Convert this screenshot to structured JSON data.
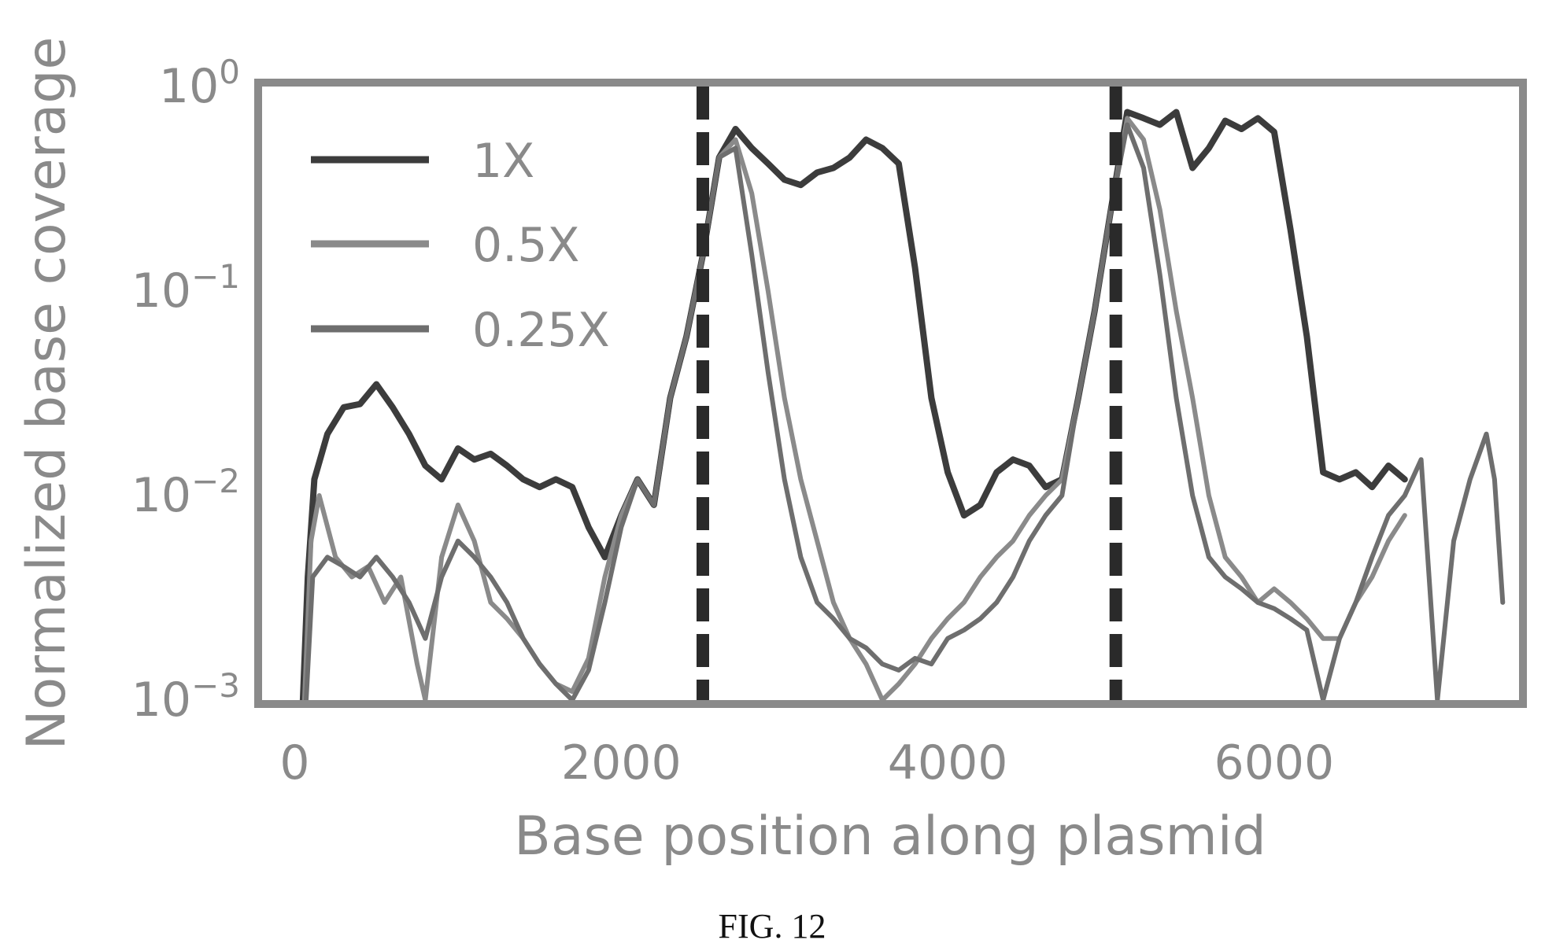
{
  "chart_data": {
    "type": "line",
    "xlabel": "Base position along plasmid",
    "ylabel": "Normalized base coverage",
    "xlim": [
      -200,
      7500
    ],
    "ylim": [
      0.001,
      1
    ],
    "y_scale": "log",
    "x_ticks": [
      0,
      2000,
      4000,
      6000
    ],
    "x_tick_labels": [
      "0",
      "2000",
      "4000",
      "6000"
    ],
    "y_ticks": [
      0.001,
      0.01,
      0.1,
      1
    ],
    "y_tick_labels": [
      {
        "base": "10",
        "exp": "−3"
      },
      {
        "base": "10",
        "exp": "−2"
      },
      {
        "base": "10",
        "exp": "−1"
      },
      {
        "base": "10",
        "exp": "0"
      }
    ],
    "vlines": [
      2500,
      5030
    ],
    "legend": {
      "position": "top-left"
    },
    "grid": false,
    "series": [
      {
        "name": "1X",
        "color": "#3c3c3c",
        "points": [
          [
            50,
            0.001
          ],
          [
            80,
            0.004
          ],
          [
            120,
            0.012
          ],
          [
            200,
            0.02
          ],
          [
            300,
            0.027
          ],
          [
            400,
            0.028
          ],
          [
            500,
            0.035
          ],
          [
            600,
            0.027
          ],
          [
            700,
            0.02
          ],
          [
            800,
            0.014
          ],
          [
            900,
            0.012
          ],
          [
            1000,
            0.017
          ],
          [
            1100,
            0.015
          ],
          [
            1200,
            0.016
          ],
          [
            1300,
            0.014
          ],
          [
            1400,
            0.012
          ],
          [
            1500,
            0.011
          ],
          [
            1600,
            0.012
          ],
          [
            1700,
            0.011
          ],
          [
            1800,
            0.007
          ],
          [
            1900,
            0.005
          ],
          [
            2000,
            0.008
          ],
          [
            2100,
            0.012
          ],
          [
            2200,
            0.009
          ],
          [
            2300,
            0.03
          ],
          [
            2400,
            0.06
          ],
          [
            2500,
            0.15
          ],
          [
            2600,
            0.45
          ],
          [
            2700,
            0.62
          ],
          [
            2800,
            0.5
          ],
          [
            2900,
            0.42
          ],
          [
            3000,
            0.35
          ],
          [
            3100,
            0.33
          ],
          [
            3200,
            0.38
          ],
          [
            3300,
            0.4
          ],
          [
            3400,
            0.45
          ],
          [
            3500,
            0.55
          ],
          [
            3600,
            0.5
          ],
          [
            3700,
            0.42
          ],
          [
            3800,
            0.13
          ],
          [
            3900,
            0.03
          ],
          [
            4000,
            0.013
          ],
          [
            4100,
            0.008
          ],
          [
            4200,
            0.009
          ],
          [
            4300,
            0.013
          ],
          [
            4400,
            0.015
          ],
          [
            4500,
            0.014
          ],
          [
            4600,
            0.011
          ],
          [
            4700,
            0.012
          ],
          [
            4800,
            0.03
          ],
          [
            4900,
            0.08
          ],
          [
            5000,
            0.25
          ],
          [
            5100,
            0.75
          ],
          [
            5200,
            0.7
          ],
          [
            5300,
            0.65
          ],
          [
            5400,
            0.75
          ],
          [
            5500,
            0.4
          ],
          [
            5600,
            0.5
          ],
          [
            5700,
            0.68
          ],
          [
            5800,
            0.62
          ],
          [
            5900,
            0.7
          ],
          [
            6000,
            0.6
          ],
          [
            6100,
            0.2
          ],
          [
            6200,
            0.06
          ],
          [
            6300,
            0.013
          ],
          [
            6400,
            0.012
          ],
          [
            6500,
            0.013
          ],
          [
            6600,
            0.011
          ],
          [
            6700,
            0.014
          ],
          [
            6800,
            0.012
          ]
        ]
      },
      {
        "name": "0.5X",
        "color": "#8a8a8a",
        "points": [
          [
            60,
            0.001
          ],
          [
            100,
            0.006
          ],
          [
            150,
            0.01
          ],
          [
            250,
            0.005
          ],
          [
            350,
            0.004
          ],
          [
            450,
            0.0045
          ],
          [
            550,
            0.003
          ],
          [
            650,
            0.004
          ],
          [
            750,
            0.0015
          ],
          [
            800,
            0.001
          ],
          [
            900,
            0.005
          ],
          [
            1000,
            0.009
          ],
          [
            1100,
            0.006
          ],
          [
            1200,
            0.003
          ],
          [
            1300,
            0.0025
          ],
          [
            1400,
            0.002
          ],
          [
            1500,
            0.0015
          ],
          [
            1600,
            0.0012
          ],
          [
            1700,
            0.0011
          ],
          [
            1800,
            0.0016
          ],
          [
            1900,
            0.004
          ],
          [
            2000,
            0.008
          ],
          [
            2100,
            0.012
          ],
          [
            2200,
            0.009
          ],
          [
            2300,
            0.03
          ],
          [
            2400,
            0.06
          ],
          [
            2500,
            0.15
          ],
          [
            2600,
            0.45
          ],
          [
            2700,
            0.55
          ],
          [
            2800,
            0.3
          ],
          [
            2900,
            0.1
          ],
          [
            3000,
            0.03
          ],
          [
            3100,
            0.012
          ],
          [
            3200,
            0.006
          ],
          [
            3300,
            0.003
          ],
          [
            3400,
            0.002
          ],
          [
            3500,
            0.0015
          ],
          [
            3600,
            0.001
          ],
          [
            3700,
            0.0012
          ],
          [
            3800,
            0.0015
          ],
          [
            3900,
            0.002
          ],
          [
            4000,
            0.0025
          ],
          [
            4100,
            0.003
          ],
          [
            4200,
            0.004
          ],
          [
            4300,
            0.005
          ],
          [
            4400,
            0.006
          ],
          [
            4500,
            0.008
          ],
          [
            4600,
            0.01
          ],
          [
            4700,
            0.012
          ],
          [
            4800,
            0.03
          ],
          [
            4900,
            0.08
          ],
          [
            5000,
            0.25
          ],
          [
            5100,
            0.7
          ],
          [
            5200,
            0.55
          ],
          [
            5300,
            0.25
          ],
          [
            5400,
            0.08
          ],
          [
            5500,
            0.03
          ],
          [
            5600,
            0.01
          ],
          [
            5700,
            0.005
          ],
          [
            5800,
            0.004
          ],
          [
            5900,
            0.003
          ],
          [
            6000,
            0.0035
          ],
          [
            6100,
            0.003
          ],
          [
            6200,
            0.0025
          ],
          [
            6300,
            0.002
          ],
          [
            6400,
            0.002
          ],
          [
            6500,
            0.003
          ],
          [
            6600,
            0.004
          ],
          [
            6700,
            0.006
          ],
          [
            6800,
            0.008
          ]
        ]
      },
      {
        "name": "0.25X",
        "color": "#6e6e6e",
        "points": [
          [
            70,
            0.001
          ],
          [
            110,
            0.004
          ],
          [
            200,
            0.005
          ],
          [
            300,
            0.0045
          ],
          [
            400,
            0.004
          ],
          [
            500,
            0.005
          ],
          [
            600,
            0.004
          ],
          [
            700,
            0.003
          ],
          [
            800,
            0.002
          ],
          [
            900,
            0.004
          ],
          [
            1000,
            0.006
          ],
          [
            1100,
            0.005
          ],
          [
            1200,
            0.004
          ],
          [
            1300,
            0.003
          ],
          [
            1400,
            0.002
          ],
          [
            1500,
            0.0015
          ],
          [
            1600,
            0.0012
          ],
          [
            1700,
            0.001
          ],
          [
            1800,
            0.0014
          ],
          [
            1900,
            0.003
          ],
          [
            2000,
            0.007
          ],
          [
            2100,
            0.012
          ],
          [
            2200,
            0.009
          ],
          [
            2300,
            0.03
          ],
          [
            2400,
            0.06
          ],
          [
            2500,
            0.15
          ],
          [
            2600,
            0.45
          ],
          [
            2700,
            0.5
          ],
          [
            2800,
            0.15
          ],
          [
            2900,
            0.04
          ],
          [
            3000,
            0.012
          ],
          [
            3100,
            0.005
          ],
          [
            3200,
            0.003
          ],
          [
            3300,
            0.0025
          ],
          [
            3400,
            0.002
          ],
          [
            3500,
            0.0018
          ],
          [
            3600,
            0.0015
          ],
          [
            3700,
            0.0014
          ],
          [
            3800,
            0.0016
          ],
          [
            3900,
            0.0015
          ],
          [
            4000,
            0.002
          ],
          [
            4100,
            0.0022
          ],
          [
            4200,
            0.0025
          ],
          [
            4300,
            0.003
          ],
          [
            4400,
            0.004
          ],
          [
            4500,
            0.006
          ],
          [
            4600,
            0.008
          ],
          [
            4700,
            0.01
          ],
          [
            4800,
            0.03
          ],
          [
            4900,
            0.08
          ],
          [
            5000,
            0.25
          ],
          [
            5100,
            0.65
          ],
          [
            5200,
            0.4
          ],
          [
            5300,
            0.12
          ],
          [
            5400,
            0.03
          ],
          [
            5500,
            0.01
          ],
          [
            5600,
            0.005
          ],
          [
            5700,
            0.004
          ],
          [
            5800,
            0.0035
          ],
          [
            5900,
            0.003
          ],
          [
            6000,
            0.0028
          ],
          [
            6100,
            0.0025
          ],
          [
            6200,
            0.0022
          ],
          [
            6300,
            0.001
          ],
          [
            6400,
            0.002
          ],
          [
            6500,
            0.003
          ],
          [
            6600,
            0.005
          ],
          [
            6700,
            0.008
          ],
          [
            6800,
            0.01
          ],
          [
            6900,
            0.015
          ],
          [
            7000,
            0.001
          ],
          [
            7100,
            0.006
          ],
          [
            7200,
            0.012
          ],
          [
            7300,
            0.02
          ],
          [
            7350,
            0.012
          ],
          [
            7400,
            0.003
          ]
        ]
      }
    ]
  },
  "caption": "FIG. 12"
}
